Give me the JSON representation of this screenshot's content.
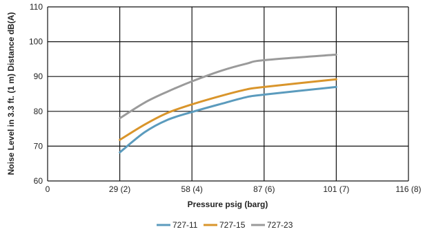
{
  "chart_data": {
    "type": "line",
    "title": "",
    "xlabel": "Pressure psig (barg)",
    "ylabel": "Noise  Level in 3.3 ft. (1 m) Distance dB(A)",
    "x_ticks": [
      {
        "value": 0,
        "label": "0"
      },
      {
        "value": 29,
        "label": "29 (2)"
      },
      {
        "value": 58,
        "label": "58 (4)"
      },
      {
        "value": 87,
        "label": "87 (6)"
      },
      {
        "value": 101,
        "label": "101 (7)"
      },
      {
        "value": 116,
        "label": "116 (8)"
      }
    ],
    "y_ticks": [
      60,
      70,
      80,
      90,
      100,
      110
    ],
    "ylim": [
      60,
      110
    ],
    "grid": true,
    "legend_position": "bottom-center",
    "series": [
      {
        "name": "727-11",
        "color": "#5b9bbd",
        "points": [
          [
            29,
            68.2
          ],
          [
            39,
            74.0
          ],
          [
            48,
            77.5
          ],
          [
            58,
            79.8
          ],
          [
            70,
            82.2
          ],
          [
            80,
            84.1
          ],
          [
            87,
            84.8
          ],
          [
            101,
            87.0
          ]
        ]
      },
      {
        "name": "727-15",
        "color": "#d9952b",
        "points": [
          [
            29,
            71.8
          ],
          [
            39,
            76.2
          ],
          [
            48,
            79.5
          ],
          [
            58,
            82.0
          ],
          [
            70,
            84.5
          ],
          [
            80,
            86.3
          ],
          [
            87,
            87.0
          ],
          [
            101,
            89.2
          ]
        ]
      },
      {
        "name": "727-23",
        "color": "#9a9a9a",
        "points": [
          [
            29,
            78.0
          ],
          [
            39,
            82.5
          ],
          [
            48,
            85.6
          ],
          [
            58,
            88.6
          ],
          [
            70,
            91.7
          ],
          [
            80,
            93.7
          ],
          [
            87,
            94.7
          ],
          [
            101,
            96.3
          ]
        ]
      }
    ]
  }
}
